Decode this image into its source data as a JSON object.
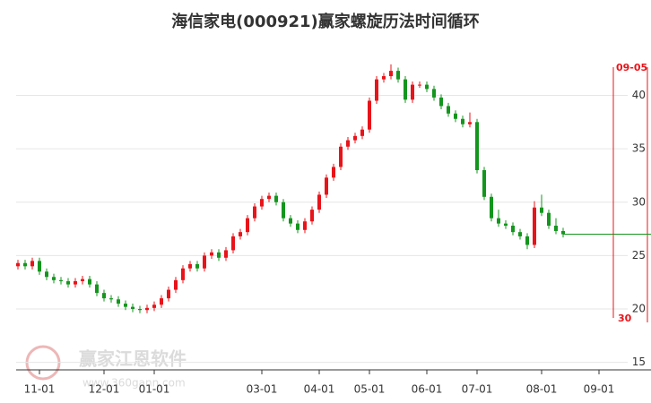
{
  "chart_data": {
    "type": "candlestick",
    "title": "海信家电(000921)赢家螺旋历法时间循环",
    "watermark": "赢家江恩软件",
    "watermark_url": "www.360gann.com",
    "categories": [
      null,
      null,
      null,
      "11-01",
      null,
      null,
      null,
      null,
      null,
      null,
      null,
      null,
      "12-01",
      null,
      null,
      null,
      null,
      null,
      null,
      "01-01",
      null,
      null,
      null,
      null,
      null,
      null,
      null,
      null,
      null,
      null,
      null,
      null,
      null,
      null,
      "03-01",
      null,
      null,
      null,
      null,
      null,
      null,
      null,
      "04-01",
      null,
      null,
      null,
      null,
      null,
      null,
      "05-01",
      null,
      null,
      null,
      null,
      null,
      null,
      null,
      "06-01",
      null,
      null,
      null,
      null,
      null,
      null,
      "07-01",
      null,
      null,
      null,
      null,
      null,
      null,
      null,
      null,
      "08-01",
      null,
      null,
      null,
      null,
      null,
      null,
      null,
      "09-01",
      null,
      null,
      null,
      null,
      null,
      null
    ],
    "open": [
      24.0,
      24.3,
      24.0,
      24.5,
      23.5,
      23.0,
      22.7,
      22.6,
      22.3,
      22.6,
      22.8,
      22.3,
      21.5,
      21.0,
      20.9,
      20.5,
      20.2,
      20.0,
      19.9,
      20.1,
      20.4,
      21.0,
      21.8,
      22.7,
      23.8,
      24.2,
      23.8,
      25.0,
      25.3,
      24.8,
      25.5,
      26.8,
      27.2,
      28.5,
      29.6,
      30.3,
      30.6,
      30.0,
      28.5,
      28.0,
      27.4,
      28.2,
      29.3,
      30.7,
      32.3,
      33.3,
      35.2,
      35.8,
      36.2,
      36.8,
      39.5,
      41.5,
      41.8,
      42.3,
      41.5,
      39.6,
      41.0,
      41.0,
      40.6,
      39.8,
      39.0,
      38.3,
      37.8,
      37.3,
      37.5,
      33.0,
      30.5,
      28.5,
      28.0,
      27.8,
      27.2,
      26.8,
      26.0,
      29.5,
      29.0,
      27.8,
      27.3,
      null,
      null,
      null,
      null,
      null,
      null,
      null,
      null,
      null,
      null,
      null
    ],
    "high": [
      24.6,
      24.6,
      24.8,
      24.8,
      23.8,
      23.3,
      23.0,
      22.9,
      22.9,
      23.1,
      23.1,
      22.6,
      21.8,
      21.3,
      21.2,
      20.8,
      20.5,
      20.3,
      20.4,
      20.7,
      21.3,
      22.1,
      23.0,
      24.1,
      24.5,
      24.5,
      25.3,
      25.6,
      25.6,
      25.8,
      27.1,
      27.5,
      28.8,
      29.9,
      30.6,
      30.9,
      30.9,
      30.3,
      28.8,
      28.3,
      28.5,
      29.6,
      31.0,
      32.6,
      33.6,
      35.5,
      36.1,
      36.5,
      37.1,
      39.8,
      41.8,
      42.1,
      42.9,
      42.6,
      41.8,
      41.3,
      41.3,
      41.3,
      40.9,
      40.1,
      39.3,
      38.6,
      38.1,
      38.4,
      37.8,
      33.3,
      30.8,
      29.3,
      28.3,
      28.1,
      27.5,
      27.1,
      30.1,
      30.7,
      29.3,
      28.5,
      27.6,
      null,
      null,
      null,
      null,
      null,
      null,
      null,
      null,
      null,
      null,
      null
    ],
    "low": [
      23.7,
      23.7,
      23.7,
      23.2,
      22.7,
      22.4,
      22.3,
      22.0,
      22.0,
      22.3,
      22.0,
      21.2,
      20.7,
      20.6,
      20.2,
      19.9,
      19.7,
      19.6,
      19.6,
      19.8,
      20.1,
      20.7,
      21.5,
      22.4,
      23.5,
      23.5,
      23.5,
      24.7,
      24.5,
      24.5,
      25.2,
      26.5,
      26.9,
      28.2,
      29.3,
      30.0,
      29.7,
      28.2,
      27.7,
      27.1,
      27.1,
      27.9,
      29.0,
      30.4,
      32.0,
      33.0,
      34.9,
      35.5,
      35.9,
      36.5,
      39.2,
      41.2,
      41.5,
      41.2,
      39.3,
      39.3,
      40.7,
      40.3,
      39.5,
      38.7,
      38.0,
      37.5,
      37.0,
      37.0,
      32.7,
      30.2,
      28.2,
      27.7,
      27.5,
      26.9,
      26.5,
      25.6,
      25.7,
      28.7,
      27.5,
      27.0,
      26.7,
      null,
      null,
      null,
      null,
      null,
      null,
      null,
      null,
      null,
      null,
      null
    ],
    "close": [
      24.3,
      24.0,
      24.5,
      23.5,
      23.0,
      22.7,
      22.6,
      22.3,
      22.6,
      22.8,
      22.3,
      21.5,
      21.0,
      20.9,
      20.5,
      20.2,
      20.0,
      19.9,
      20.1,
      20.4,
      21.0,
      21.8,
      22.7,
      23.8,
      24.2,
      23.8,
      25.0,
      25.3,
      24.8,
      25.5,
      26.8,
      27.2,
      28.5,
      29.6,
      30.3,
      30.6,
      30.0,
      28.5,
      28.0,
      27.4,
      28.2,
      29.3,
      30.7,
      32.3,
      33.3,
      35.2,
      35.8,
      36.2,
      36.8,
      39.5,
      41.5,
      41.8,
      42.3,
      41.5,
      39.6,
      41.0,
      41.0,
      40.6,
      39.8,
      39.0,
      38.3,
      37.8,
      37.3,
      37.5,
      33.0,
      30.5,
      28.5,
      28.0,
      27.8,
      27.2,
      26.8,
      26.0,
      29.5,
      29.0,
      27.8,
      27.3,
      27.0,
      null,
      null,
      null,
      null,
      null,
      null,
      null,
      null,
      null,
      null,
      null
    ],
    "up_color": "#e8141a",
    "down_color": "#14961e",
    "cycle": {
      "category_index": 83,
      "date_label": "09-05",
      "count": 30,
      "color": "#e8141a"
    },
    "ylim": [
      14.3,
      43.9
    ],
    "yticks": [
      15,
      20,
      25,
      30,
      35,
      40
    ],
    "grid": true
  }
}
